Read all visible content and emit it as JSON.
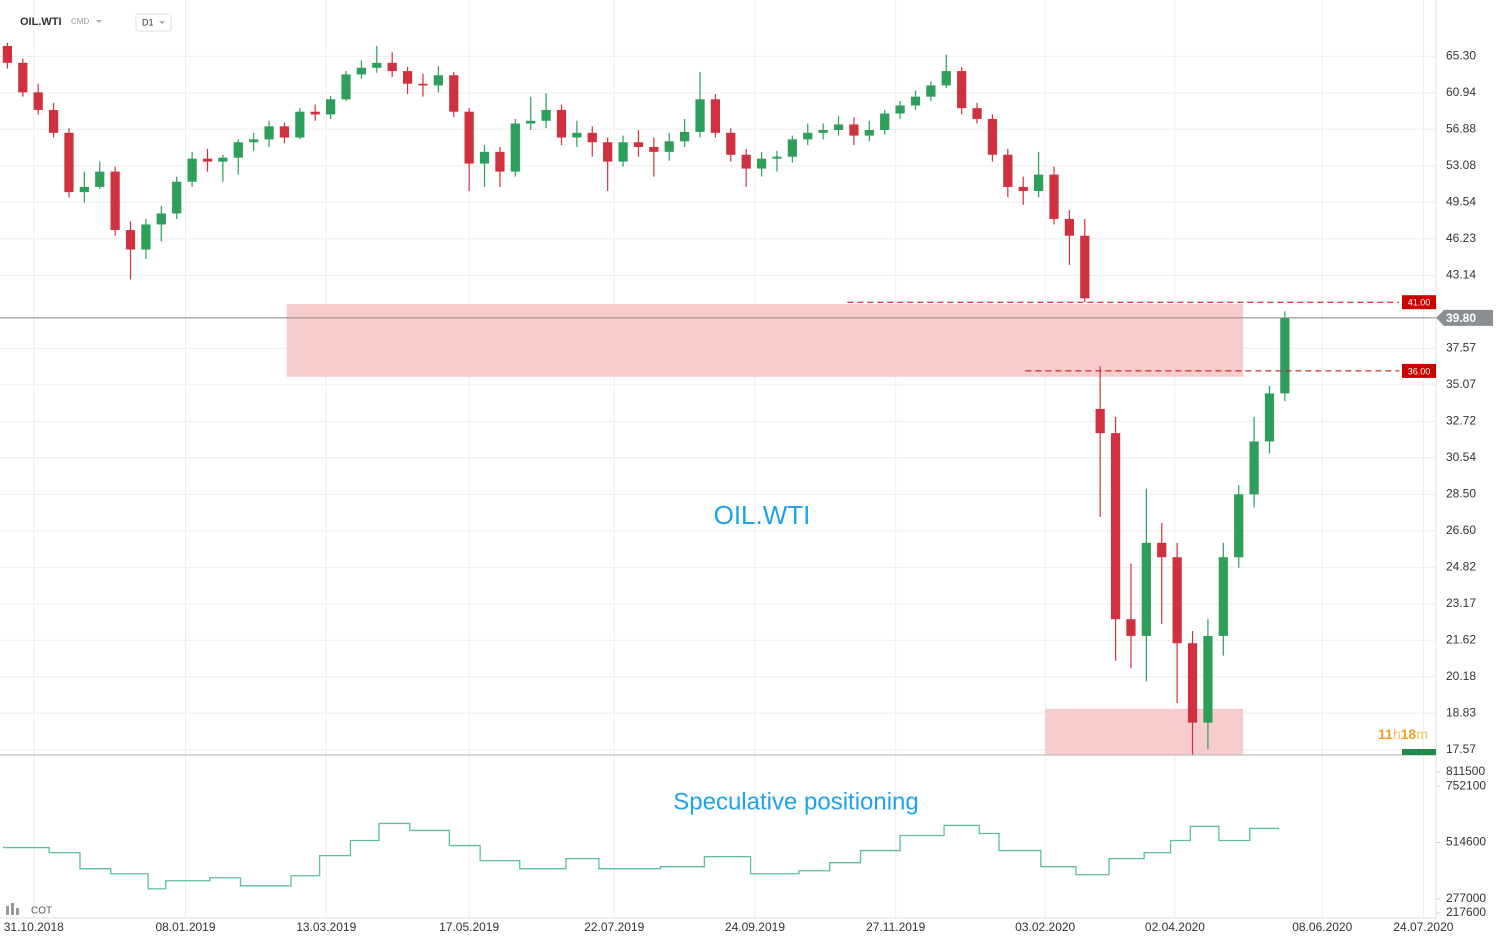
{
  "header": {
    "symbol": "OIL.WTI",
    "market": "CMD",
    "interval": "D1"
  },
  "chart_data": [
    {
      "type": "candlestick",
      "watermark": "OIL.WTI",
      "log_scale": true,
      "grid": true,
      "up_color": "#2e9e5b",
      "down_color": "#d0313f",
      "x": [
        "2018-10-19",
        "2018-10-26",
        "2018-11-02",
        "2018-11-09",
        "2018-11-16",
        "2018-11-23",
        "2018-11-30",
        "2018-12-07",
        "2018-12-14",
        "2018-12-21",
        "2018-12-28",
        "2019-01-04",
        "2019-01-11",
        "2019-01-18",
        "2019-01-25",
        "2019-02-01",
        "2019-02-08",
        "2019-02-15",
        "2019-02-22",
        "2019-03-01",
        "2019-03-08",
        "2019-03-15",
        "2019-03-22",
        "2019-03-29",
        "2019-04-05",
        "2019-04-12",
        "2019-04-19",
        "2019-04-26",
        "2019-05-03",
        "2019-05-10",
        "2019-05-17",
        "2019-05-24",
        "2019-05-31",
        "2019-06-07",
        "2019-06-14",
        "2019-06-21",
        "2019-06-28",
        "2019-07-05",
        "2019-07-12",
        "2019-07-19",
        "2019-07-26",
        "2019-08-02",
        "2019-08-09",
        "2019-08-16",
        "2019-08-23",
        "2019-08-30",
        "2019-09-06",
        "2019-09-13",
        "2019-09-20",
        "2019-09-27",
        "2019-10-04",
        "2019-10-11",
        "2019-10-18",
        "2019-10-25",
        "2019-11-01",
        "2019-11-08",
        "2019-11-15",
        "2019-11-22",
        "2019-11-29",
        "2019-12-06",
        "2019-12-13",
        "2019-12-20",
        "2019-12-27",
        "2020-01-03",
        "2020-01-10",
        "2020-01-17",
        "2020-01-24",
        "2020-01-31",
        "2020-02-07",
        "2020-02-14",
        "2020-02-21",
        "2020-02-28",
        "2020-03-06",
        "2020-03-13",
        "2020-03-20",
        "2020-03-27",
        "2020-04-03",
        "2020-04-10",
        "2020-04-17",
        "2020-04-24",
        "2020-05-01",
        "2020-05-08",
        "2020-05-15",
        "2020-05-22"
      ],
      "series": [
        {
          "values": [
            [
              66.6,
              67.0,
              63.8,
              64.5
            ],
            [
              64.5,
              65.0,
              60.5,
              61.0
            ],
            [
              61.0,
              62.0,
              58.5,
              59.0
            ],
            [
              59.0,
              59.8,
              56.0,
              56.5
            ],
            [
              56.5,
              57.0,
              50.0,
              50.5
            ],
            [
              50.5,
              52.5,
              49.5,
              51.0
            ],
            [
              51.0,
              53.5,
              50.8,
              52.5
            ],
            [
              52.5,
              53.0,
              46.5,
              47.0
            ],
            [
              47.0,
              47.8,
              42.8,
              45.3
            ],
            [
              45.3,
              48.0,
              44.5,
              47.5
            ],
            [
              47.5,
              49.2,
              46.0,
              48.5
            ],
            [
              48.5,
              52.0,
              48.0,
              51.5
            ],
            [
              51.5,
              54.5,
              51.0,
              53.8
            ],
            [
              53.8,
              54.8,
              52.5,
              53.5
            ],
            [
              53.5,
              54.2,
              51.5,
              53.9
            ],
            [
              53.9,
              55.8,
              52.2,
              55.5
            ],
            [
              55.5,
              56.5,
              54.6,
              55.8
            ],
            [
              55.8,
              57.8,
              55.0,
              57.2
            ],
            [
              57.2,
              57.6,
              55.4,
              56.0
            ],
            [
              56.0,
              59.2,
              55.8,
              58.8
            ],
            [
              58.8,
              59.6,
              57.8,
              58.5
            ],
            [
              58.5,
              60.6,
              58.0,
              60.2
            ],
            [
              60.2,
              63.5,
              60.0,
              63.1
            ],
            [
              63.1,
              64.8,
              62.6,
              63.9
            ],
            [
              63.9,
              66.6,
              63.3,
              64.5
            ],
            [
              64.5,
              65.8,
              62.8,
              63.5
            ],
            [
              63.5,
              64.0,
              60.8,
              62.0
            ],
            [
              62.0,
              63.2,
              60.5,
              61.8
            ],
            [
              61.8,
              64.1,
              61.0,
              63.0
            ],
            [
              63.0,
              63.4,
              58.2,
              58.8
            ],
            [
              58.8,
              59.2,
              50.6,
              53.3
            ],
            [
              53.3,
              55.2,
              51.0,
              54.5
            ],
            [
              54.5,
              55.0,
              51.0,
              52.5
            ],
            [
              52.5,
              58.0,
              52.0,
              57.5
            ],
            [
              57.5,
              60.5,
              56.8,
              57.8
            ],
            [
              57.8,
              60.9,
              57.0,
              59.0
            ],
            [
              59.0,
              59.6,
              55.2,
              56.0
            ],
            [
              56.0,
              57.8,
              55.0,
              56.5
            ],
            [
              56.5,
              57.2,
              54.0,
              55.5
            ],
            [
              55.5,
              56.0,
              50.6,
              53.5
            ],
            [
              53.5,
              56.2,
              53.0,
              55.5
            ],
            [
              55.5,
              56.8,
              54.0,
              55.0
            ],
            [
              55.0,
              56.0,
              52.0,
              54.5
            ],
            [
              54.5,
              56.5,
              53.6,
              55.6
            ],
            [
              55.6,
              58.0,
              55.0,
              56.6
            ],
            [
              56.6,
              63.4,
              56.0,
              60.2
            ],
            [
              60.2,
              60.8,
              56.0,
              56.5
            ],
            [
              56.5,
              57.0,
              53.5,
              54.2
            ],
            [
              54.2,
              54.8,
              51.0,
              52.8
            ],
            [
              52.8,
              54.5,
              52.0,
              53.8
            ],
            [
              53.8,
              54.6,
              52.5,
              54.0
            ],
            [
              54.0,
              56.2,
              53.4,
              55.8
            ],
            [
              55.8,
              57.5,
              55.2,
              56.5
            ],
            [
              56.5,
              57.5,
              55.8,
              56.8
            ],
            [
              56.8,
              58.3,
              56.2,
              57.4
            ],
            [
              57.4,
              58.2,
              55.2,
              56.2
            ],
            [
              56.2,
              57.8,
              55.6,
              56.8
            ],
            [
              56.8,
              59.0,
              56.3,
              58.6
            ],
            [
              58.6,
              60.0,
              58.0,
              59.5
            ],
            [
              59.5,
              61.2,
              59.0,
              60.5
            ],
            [
              60.5,
              62.3,
              60.0,
              61.8
            ],
            [
              61.8,
              65.5,
              61.5,
              63.5
            ],
            [
              63.5,
              64.0,
              58.5,
              59.2
            ],
            [
              59.2,
              59.8,
              57.5,
              58.0
            ],
            [
              58.0,
              58.5,
              53.5,
              54.2
            ],
            [
              54.2,
              54.8,
              50.0,
              51.0
            ],
            [
              51.0,
              52.0,
              49.3,
              50.6
            ],
            [
              50.6,
              54.5,
              50.0,
              52.2
            ],
            [
              52.2,
              53.0,
              47.5,
              48.0
            ],
            [
              48.0,
              48.8,
              44.0,
              46.5
            ],
            [
              46.5,
              48.0,
              41.0,
              41.3
            ],
            [
              33.5,
              36.3,
              27.3,
              32.0
            ],
            [
              32.0,
              33.0,
              20.8,
              22.5
            ],
            [
              22.5,
              25.0,
              20.5,
              21.8
            ],
            [
              21.8,
              28.8,
              20.0,
              26.0
            ],
            [
              26.0,
              27.0,
              22.3,
              25.3
            ],
            [
              25.3,
              26.0,
              19.2,
              21.5
            ],
            [
              21.5,
              22.0,
              17.4,
              18.5
            ],
            [
              18.5,
              22.5,
              17.6,
              21.8
            ],
            [
              21.8,
              26.0,
              21.0,
              25.3
            ],
            [
              25.3,
              29.0,
              24.8,
              28.5
            ],
            [
              28.5,
              33.0,
              27.8,
              31.5
            ],
            [
              31.5,
              35.0,
              30.8,
              34.5
            ],
            [
              34.5,
              40.3,
              34.0,
              39.8
            ]
          ]
        }
      ],
      "xlim": [
        "2018-10-17",
        "2020-07-27"
      ],
      "xticks": [
        {
          "value": "2018-10-31",
          "label": "31.10.2018"
        },
        {
          "value": "2019-01-08",
          "label": "08.01.2019"
        },
        {
          "value": "2019-03-13",
          "label": "13.03.2019"
        },
        {
          "value": "2019-05-17",
          "label": "17.05.2019"
        },
        {
          "value": "2019-07-22",
          "label": "22.07.2019"
        },
        {
          "value": "2019-09-24",
          "label": "24.09.2019"
        },
        {
          "value": "2019-11-27",
          "label": "27.11.2019"
        },
        {
          "value": "2020-02-03",
          "label": "03.02.2020"
        },
        {
          "value": "2020-04-02",
          "label": "02.04.2020"
        },
        {
          "value": "2020-06-08",
          "label": "08.06.2020"
        },
        {
          "value": "2020-07-24",
          "label": "24.07.2020"
        }
      ],
      "ylim": [
        17.4,
        67.35
      ],
      "yticks": [
        {
          "value": 65.3,
          "label": "65.30"
        },
        60.94,
        56.88,
        53.08,
        49.54,
        46.23,
        43.14,
        37.57,
        35.07,
        32.72,
        30.54,
        {
          "value": 28.5,
          "label": "28.50"
        },
        {
          "value": 26.6,
          "label": "26.60"
        },
        24.82,
        23.17,
        21.62,
        20.18,
        18.83,
        17.57
      ],
      "current": {
        "value": 39.8,
        "label": "39.80"
      },
      "levels": [
        {
          "value": 41,
          "label": "41.00",
          "x": [
            "2019-11-05",
            "2020-07-13"
          ],
          "color": "#cc0000"
        },
        {
          "value": 36,
          "label": "36.00",
          "x": [
            "2020-01-25",
            "2020-07-13"
          ],
          "color": "#cc0000"
        }
      ],
      "zones": [
        {
          "x": [
            "2019-02-23",
            "2020-05-03"
          ],
          "y": [
            35.6,
            40.85
          ],
          "color": "#f7c6c6"
        },
        {
          "x": [
            "2020-02-03",
            "2020-05-03"
          ],
          "y": [
            17.4,
            18.99
          ],
          "color": "#f7c6c6"
        }
      ],
      "countdown": [
        "11",
        "h",
        "18",
        "m"
      ]
    },
    {
      "type": "step-line",
      "title": "Speculative positioning",
      "indicator": "COT",
      "grid": true,
      "x": [
        "2018-10-17",
        "2018-11-07",
        "2018-11-21",
        "2018-12-05",
        "2018-12-22",
        "2018-12-30",
        "2019-01-19",
        "2019-02-02",
        "2019-02-25",
        "2019-03-10",
        "2019-03-24",
        "2019-04-06",
        "2019-04-20",
        "2019-05-08",
        "2019-05-22",
        "2019-06-09",
        "2019-06-30",
        "2019-07-15",
        "2019-08-12",
        "2019-09-01",
        "2019-09-22",
        "2019-10-14",
        "2019-10-28",
        "2019-11-11",
        "2019-11-29",
        "2019-12-19",
        "2020-01-04",
        "2020-01-13",
        "2020-02-01",
        "2020-02-17",
        "2020-03-03",
        "2020-03-19",
        "2020-03-31",
        "2020-04-09",
        "2020-04-22",
        "2020-05-06",
        "2020-05-19"
      ],
      "series": [
        {
          "color": "#5fbf9a",
          "values": [
            493300,
            472100,
            404200,
            383000,
            319300,
            353300,
            366000,
            332100,
            374500,
            459400,
            523000,
            595100,
            565400,
            501800,
            438100,
            404200,
            446600,
            404200,
            412600,
            455100,
            383000,
            395700,
            429600,
            480600,
            544200,
            586600,
            552700,
            480600,
            412600,
            378700,
            446600,
            472100,
            523000,
            582400,
            523000,
            574000,
            569700
          ]
        }
      ],
      "xlim": [
        "2018-10-17",
        "2020-07-27"
      ],
      "ylim": [
        196400,
        862400
      ],
      "yticks": [
        811500,
        752100,
        514600,
        277000,
        217600
      ]
    }
  ]
}
